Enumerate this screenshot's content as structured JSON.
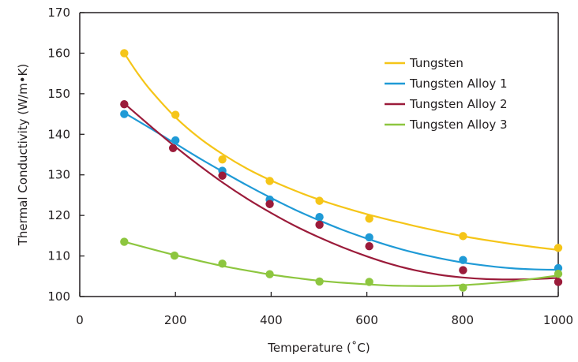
{
  "chart_data": {
    "type": "line",
    "xlabel": "Temperature (˚C)",
    "ylabel": "Thermal Conductivity (W/m•K)",
    "xlim": [
      0,
      1000
    ],
    "ylim": [
      100,
      170
    ],
    "xticks": [
      "0",
      "200",
      "400",
      "600",
      "800",
      "1000"
    ],
    "yticks": [
      "100",
      "110",
      "120",
      "130",
      "140",
      "150",
      "160",
      "170"
    ],
    "grid": false,
    "legend_position": "top-right",
    "series": [
      {
        "name": "Tungsten",
        "color": "#f5c518",
        "points": [
          [
            93,
            160
          ],
          [
            200,
            144.8
          ],
          [
            298,
            133.8
          ],
          [
            397,
            128.5
          ],
          [
            501,
            123.6
          ],
          [
            605,
            119.2
          ],
          [
            801,
            114.9
          ],
          [
            1000,
            112
          ]
        ],
        "fit": [
          [
            93,
            160
          ],
          [
            120,
            155.2
          ],
          [
            150,
            150.6
          ],
          [
            200,
            144.2
          ],
          [
            250,
            139.1
          ],
          [
            300,
            135.0
          ],
          [
            350,
            131.5
          ],
          [
            400,
            128.6
          ],
          [
            450,
            126.1
          ],
          [
            500,
            123.9
          ],
          [
            550,
            122.0
          ],
          [
            600,
            120.3
          ],
          [
            650,
            118.8
          ],
          [
            700,
            117.4
          ],
          [
            750,
            116.1
          ],
          [
            800,
            114.9
          ],
          [
            850,
            113.9
          ],
          [
            900,
            113.0
          ],
          [
            950,
            112.2
          ],
          [
            1000,
            111.5
          ]
        ]
      },
      {
        "name": "Tungsten Alloy 1",
        "color": "#1f9ad6",
        "points": [
          [
            93,
            145
          ],
          [
            200,
            138.5
          ],
          [
            298,
            131
          ],
          [
            397,
            123.9
          ],
          [
            501,
            119.6
          ],
          [
            605,
            114.6
          ],
          [
            801,
            109
          ],
          [
            1000,
            107
          ]
        ],
        "fit": [
          [
            93,
            145.3
          ],
          [
            150,
            141.3
          ],
          [
            200,
            137.7
          ],
          [
            250,
            134.1
          ],
          [
            300,
            130.7
          ],
          [
            350,
            127.4
          ],
          [
            400,
            124.3
          ],
          [
            450,
            121.4
          ],
          [
            500,
            118.8
          ],
          [
            550,
            116.4
          ],
          [
            600,
            114.3
          ],
          [
            650,
            112.4
          ],
          [
            700,
            110.8
          ],
          [
            750,
            109.5
          ],
          [
            800,
            108.4
          ],
          [
            850,
            107.6
          ],
          [
            900,
            107.0
          ],
          [
            950,
            106.7
          ],
          [
            1000,
            106.6
          ]
        ]
      },
      {
        "name": "Tungsten Alloy 2",
        "color": "#9b1b3a",
        "points": [
          [
            93,
            147.4
          ],
          [
            195,
            136.6
          ],
          [
            298,
            129.8
          ],
          [
            397,
            122.8
          ],
          [
            501,
            117.7
          ],
          [
            605,
            112.4
          ],
          [
            801,
            106.5
          ],
          [
            1000,
            103.6
          ]
        ],
        "fit": [
          [
            93,
            147.6
          ],
          [
            150,
            141.8
          ],
          [
            200,
            136.9
          ],
          [
            250,
            132.3
          ],
          [
            300,
            128.0
          ],
          [
            350,
            124.1
          ],
          [
            400,
            120.6
          ],
          [
            450,
            117.4
          ],
          [
            500,
            114.6
          ],
          [
            550,
            112.1
          ],
          [
            600,
            109.9
          ],
          [
            650,
            108.0
          ],
          [
            700,
            106.5
          ],
          [
            750,
            105.4
          ],
          [
            800,
            104.7
          ],
          [
            850,
            104.3
          ],
          [
            900,
            104.2
          ],
          [
            950,
            104.3
          ],
          [
            1000,
            104.6
          ]
        ]
      },
      {
        "name": "Tungsten Alloy 3",
        "color": "#8dc63f",
        "points": [
          [
            93,
            113.5
          ],
          [
            198,
            110.1
          ],
          [
            298,
            108.1
          ],
          [
            397,
            105.5
          ],
          [
            501,
            103.7
          ],
          [
            605,
            103.6
          ],
          [
            801,
            102.2
          ],
          [
            1000,
            105.6
          ]
        ],
        "fit": [
          [
            93,
            113.5
          ],
          [
            150,
            111.7
          ],
          [
            200,
            110.2
          ],
          [
            250,
            108.8
          ],
          [
            300,
            107.5
          ],
          [
            350,
            106.4
          ],
          [
            400,
            105.4
          ],
          [
            450,
            104.6
          ],
          [
            500,
            103.9
          ],
          [
            550,
            103.4
          ],
          [
            600,
            103.0
          ],
          [
            650,
            102.7
          ],
          [
            700,
            102.6
          ],
          [
            750,
            102.6
          ],
          [
            800,
            102.8
          ],
          [
            850,
            103.2
          ],
          [
            900,
            103.7
          ],
          [
            950,
            104.4
          ],
          [
            1000,
            105.2
          ]
        ]
      }
    ]
  }
}
